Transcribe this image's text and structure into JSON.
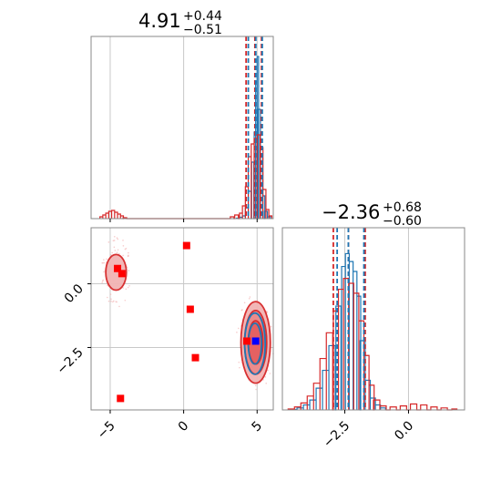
{
  "chart_data": {
    "type": "corner",
    "grid": true,
    "colors": {
      "blue": "#1f77b4",
      "red": "#d62728",
      "marker_red": "#ff0000",
      "marker_blue": "#0000ff",
      "grid": "#c8c8c8",
      "frame": "#888888"
    },
    "params": [
      {
        "value": "4.91",
        "plus": "+0.44",
        "minus": "−0.51",
        "range": [
          -6.3,
          6.1
        ],
        "ticks": [
          -5,
          0,
          5
        ],
        "tick_labels": [
          "−5",
          "0",
          "5"
        ]
      },
      {
        "value": "−2.36",
        "plus": "+0.68",
        "minus": "−0.60",
        "range": [
          -4.95,
          2.2
        ],
        "ticks": [
          -2.5,
          0.0
        ],
        "tick_labels": [
          "−2.5",
          "0.0"
        ]
      }
    ],
    "y_ticks_2d": {
      "ticks": [
        0.0,
        -2.5
      ],
      "tick_labels": [
        "0.0",
        "−2.5"
      ]
    },
    "hist_x": {
      "series": [
        {
          "name": "",
          "color": "#1f77b4",
          "bins": [
            [
              3.7,
              0.5
            ],
            [
              3.9,
              1.5
            ],
            [
              4.1,
              3
            ],
            [
              4.3,
              12
            ],
            [
              4.5,
              30
            ],
            [
              4.7,
              62
            ],
            [
              4.85,
              95
            ],
            [
              4.95,
              150
            ],
            [
              5.05,
              178
            ],
            [
              5.15,
              120
            ],
            [
              5.3,
              70
            ],
            [
              5.45,
              25
            ],
            [
              5.6,
              8
            ],
            [
              5.8,
              2
            ]
          ]
        },
        {
          "name": "",
          "color": "#d62728",
          "bins": [
            [
              -5.6,
              2
            ],
            [
              -5.4,
              4
            ],
            [
              -5.2,
              6
            ],
            [
              -5.0,
              8
            ],
            [
              -4.8,
              9
            ],
            [
              -4.6,
              7
            ],
            [
              -4.4,
              5
            ],
            [
              -4.2,
              3
            ],
            [
              -4.0,
              1
            ],
            [
              3.3,
              2
            ],
            [
              3.6,
              4
            ],
            [
              3.9,
              6
            ],
            [
              4.1,
              14
            ],
            [
              4.3,
              35
            ],
            [
              4.5,
              68
            ],
            [
              4.7,
              82
            ],
            [
              4.9,
              88
            ],
            [
              5.1,
              92
            ],
            [
              5.3,
              78
            ],
            [
              5.5,
              32
            ],
            [
              5.7,
              10
            ],
            [
              5.9,
              3
            ]
          ]
        }
      ],
      "quantiles": {
        "blue": [
          4.4,
          4.91,
          5.35
        ],
        "red": [
          4.25,
          4.85,
          5.3
        ]
      },
      "ymax": 190
    },
    "hist_y": {
      "series": [
        {
          "name": "",
          "color": "#1f77b4",
          "bins": [
            [
              -4.5,
              0.5
            ],
            [
              -4.25,
              2
            ],
            [
              -4.0,
              5
            ],
            [
              -3.75,
              10
            ],
            [
              -3.5,
              22
            ],
            [
              -3.25,
              40
            ],
            [
              -3.0,
              65
            ],
            [
              -2.75,
              105
            ],
            [
              -2.55,
              145
            ],
            [
              -2.4,
              158
            ],
            [
              -2.25,
              150
            ],
            [
              -2.1,
              140
            ],
            [
              -1.95,
              115
            ],
            [
              -1.8,
              70
            ],
            [
              -1.6,
              30
            ],
            [
              -1.4,
              12
            ],
            [
              -1.2,
              5
            ],
            [
              -1.0,
              2
            ]
          ]
        },
        {
          "name": "",
          "color": "#d62728",
          "bins": [
            [
              -4.6,
              1
            ],
            [
              -4.35,
              3
            ],
            [
              -4.1,
              7
            ],
            [
              -3.85,
              14
            ],
            [
              -3.6,
              27
            ],
            [
              -3.35,
              52
            ],
            [
              -3.1,
              78
            ],
            [
              -2.85,
              100
            ],
            [
              -2.65,
              122
            ],
            [
              -2.45,
              133
            ],
            [
              -2.25,
              128
            ],
            [
              -2.05,
              118
            ],
            [
              -1.85,
              90
            ],
            [
              -1.65,
              55
            ],
            [
              -1.45,
              25
            ],
            [
              -1.25,
              10
            ],
            [
              -1.0,
              4
            ],
            [
              -0.6,
              3
            ],
            [
              -0.2,
              4
            ],
            [
              0.2,
              6
            ],
            [
              0.6,
              5
            ],
            [
              1.0,
              3
            ],
            [
              1.4,
              2
            ],
            [
              1.8,
              1
            ]
          ]
        }
      ],
      "quantiles": {
        "blue": [
          -2.8,
          -2.36,
          -1.75
        ],
        "red": [
          -2.95,
          -2.36,
          -1.7
        ]
      },
      "ymax": 175
    },
    "scatter_2d": {
      "red_squares": [
        [
          -4.5,
          0.6
        ],
        [
          -4.2,
          0.4
        ],
        [
          0.2,
          1.5
        ],
        [
          0.45,
          -1.0
        ],
        [
          0.8,
          -2.9
        ],
        [
          -4.3,
          -4.5
        ],
        [
          4.3,
          -2.25
        ]
      ],
      "blue_squares": [
        [
          4.9,
          -2.25
        ]
      ]
    },
    "contours_2d": {
      "red": [
        {
          "cx": 4.9,
          "cy": -2.3,
          "rx": 1.0,
          "ry": 1.6,
          "fill": "#f2b4b4"
        },
        {
          "cx": 4.9,
          "cy": -2.3,
          "rx": 0.75,
          "ry": 1.25,
          "fill": "#eb8a8a"
        },
        {
          "cx": 4.9,
          "cy": -2.3,
          "rx": 0.5,
          "ry": 0.85,
          "fill": "#e45f60"
        },
        {
          "cx": -4.6,
          "cy": 0.45,
          "rx": 0.7,
          "ry": 0.7,
          "fill": "#f2b4b4"
        }
      ],
      "blue": [
        {
          "cx": 4.85,
          "cy": -2.35,
          "rx": 0.7,
          "ry": 1.2
        },
        {
          "cx": 4.85,
          "cy": -2.35,
          "rx": 0.45,
          "ry": 0.8
        }
      ]
    }
  }
}
